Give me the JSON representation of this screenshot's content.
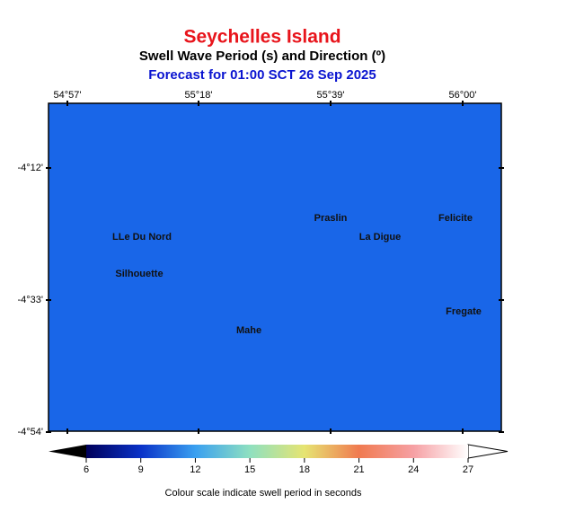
{
  "header": {
    "title": "Seychelles Island",
    "subtitle": "Swell Wave Period (s) and Direction (º)",
    "forecast": "Forecast for  01:00 SCT 26 Sep 2025"
  },
  "map": {
    "lon_labels": [
      "54°57'",
      "55°18'",
      "55°39'",
      "56°00'"
    ],
    "lat_labels": [
      "-4°12'",
      "-4°33'",
      "-4°54'"
    ],
    "places": [
      "Praslin",
      "Felicite",
      "La Digue",
      "LLe Du Nord",
      "Silhouette",
      "Fregate",
      "Mahe"
    ]
  },
  "colorbar": {
    "range": [
      6,
      27
    ],
    "ticks": [
      6,
      9,
      12,
      15,
      18,
      21,
      24,
      27
    ],
    "colors": [
      "#00005a",
      "#0a32c8",
      "#3aa0f0",
      "#8ee0c0",
      "#e6e472",
      "#f07a50",
      "#f6a0a4",
      "#ffffff"
    ],
    "caption": "Colour scale indicate swell period in seconds"
  }
}
